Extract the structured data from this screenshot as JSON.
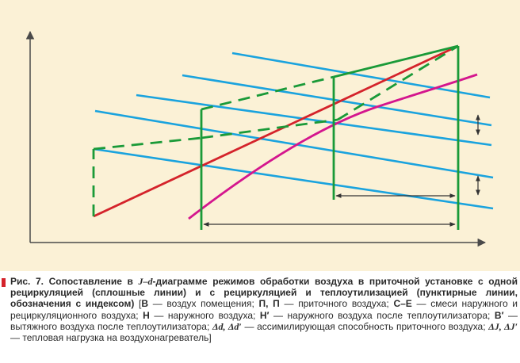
{
  "colors": {
    "background": "#fbf1d6",
    "axis": "#4a4a4a",
    "green": "#1a9a38",
    "red": "#d4232b",
    "blue": "#1aa3de",
    "magenta": "#d4168e",
    "dimension": "#333333",
    "caption_marker": "#d4232b"
  },
  "diagram": {
    "elements": [
      "axes",
      "blue-isenthalpic-lines",
      "red-mixing-line",
      "magenta-saturation-curve",
      "green-solid-process-lines",
      "green-dashed-process-lines",
      "delta-d-dimension-arrows",
      "delta-j-dimension-arrows"
    ]
  },
  "caption": {
    "label": "Рис. 7.",
    "title_pre": " Сопоставление в ",
    "title_sym": "J–d",
    "title_post": "-диаграмме режимов обработки воздуха в приточной установке с одной рециркуляцией (сплошные линии) и с рециркуляцией и теплоутилизацией (пунктирные линии, обозначения с индексом)",
    "bracket_open": " [",
    "defs": [
      {
        "key": "В",
        "text": " — воздух помещения; "
      },
      {
        "key": "П, П",
        "text": " — приточного воздуха; "
      },
      {
        "key": "С–Е",
        "text": " — смеси наружного и рециркуляционного воздуха; "
      },
      {
        "key": "Н",
        "text": " — наружного воздуха; "
      },
      {
        "key": "Н′",
        "text": " — наружного воздуха после теплоутилизатора; "
      },
      {
        "key": "В′",
        "text": " — вытяжного воздуха после теплоутилизатора; "
      }
    ],
    "sym_dd": "Δd, Δd′",
    "text_dd": " — ассимилирующая способность приточного воздуха; ",
    "sym_dj": "ΔJ, ΔJ′",
    "text_dj": " — тепловая нагрузка на воздухонагреватель]"
  }
}
